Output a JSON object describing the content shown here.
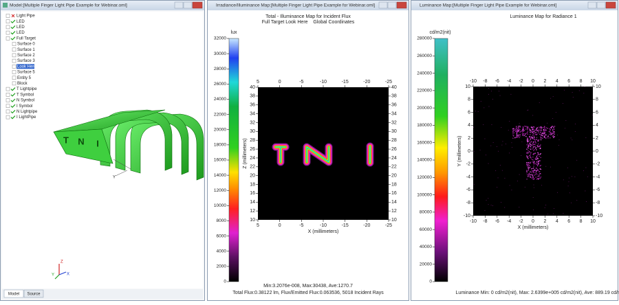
{
  "model_window": {
    "title": "Model:[Multiple Finger Light Pipe Example for Webinar.oml]",
    "tree": [
      {
        "label": "Light Pipe"
      },
      {
        "label": "LED"
      },
      {
        "label": "LED"
      },
      {
        "label": "LED"
      },
      {
        "label": "Full Target",
        "children": [
          "Surface 0",
          "Surface 1",
          "Surface 2",
          "Surface 3",
          "Look Here",
          "Surface 5",
          "Entity 5",
          "Block"
        ]
      },
      {
        "label": "T Lightpipe"
      },
      {
        "label": "T Symbol"
      },
      {
        "label": "N Symbol"
      },
      {
        "label": "I Symbol"
      },
      {
        "label": "N Lightpipe"
      },
      {
        "label": "I LightPipe"
      }
    ],
    "model_letters": [
      "T",
      "N",
      "I"
    ],
    "model_axis_label": "Y",
    "triad": [
      "Z",
      "Y",
      "X"
    ],
    "tabs": [
      "Model",
      "Source"
    ]
  },
  "illuminance_window": {
    "title": "Irradiance/Illuminance Map:[Multiple Finger Light Pipe Example for Webinar.oml]",
    "chart": {
      "title": "Total - Illuminance Map for Incident Flux",
      "subtitle": "Full Target Look Here    Global Coordinates",
      "colorbar_unit": "lux",
      "colorbar_ticks": [
        0,
        2000,
        4000,
        6000,
        8000,
        10000,
        12000,
        14000,
        16000,
        18000,
        20000,
        22000,
        24000,
        26000,
        28000,
        30000,
        32000
      ],
      "xticks": [
        5,
        0,
        -5,
        -10,
        -15,
        -20,
        -25
      ],
      "yticks": [
        10,
        12,
        14,
        16,
        18,
        20,
        22,
        24,
        26,
        28,
        30,
        32,
        34,
        36,
        38,
        40
      ],
      "xlabel": "X (millimeters)",
      "ylabel": "Z (millimeters)"
    },
    "footer": [
      "Min:3.2076e-008, Max:30438, Ave:1270.7",
      "Total Flux:0.38122 lm, Flux/Emitted Flux:0.063536, 5018 Incident Rays"
    ]
  },
  "luminance_window": {
    "title": "Luminance Map:[Multiple Finger Light Pipe Example for Webinar.oml]",
    "chart": {
      "title": "Luminance Map for Radiance 1",
      "colorbar_unit": "cd/m2(nit)",
      "colorbar_ticks": [
        0,
        20000,
        40000,
        60000,
        80000,
        100000,
        120000,
        140000,
        160000,
        180000,
        200000,
        220000,
        240000,
        260000,
        280000
      ],
      "xticks": [
        -10,
        -8,
        -6,
        -4,
        -2,
        0,
        2,
        4,
        6,
        8,
        10
      ],
      "yticks": [
        -10,
        -8,
        -6,
        -4,
        -2,
        0,
        2,
        4,
        6,
        8,
        10
      ],
      "xlabel": "X (millimeters)",
      "ylabel": "Y (millimeters)"
    },
    "footer": [
      "Luminance Min: 0 cd/m2(nit), Max: 2.6399e+005 cd/m2(nit), Ave: 889.19 cd/m2(nit"
    ]
  }
}
